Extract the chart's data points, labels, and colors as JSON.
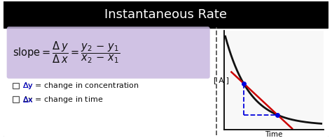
{
  "title": "Instantaneous Rate",
  "title_bg": "#000000",
  "title_color": "#ffffff",
  "outer_bg": "#ffffff",
  "inner_bg": "#ffffff",
  "card_border_color": "#222222",
  "formula_box_color": "#c8b8e0",
  "label_color": "#0000dd",
  "label_text_color": "#111111",
  "curve_color": "#111111",
  "tangent_color": "#cc0000",
  "dashed_color": "#0000dd",
  "dot_color": "#0000dd",
  "time_label": "Time",
  "ya_label": "[ A ]",
  "graph_bg": "#f8f8f8",
  "divider_color": "#555555"
}
